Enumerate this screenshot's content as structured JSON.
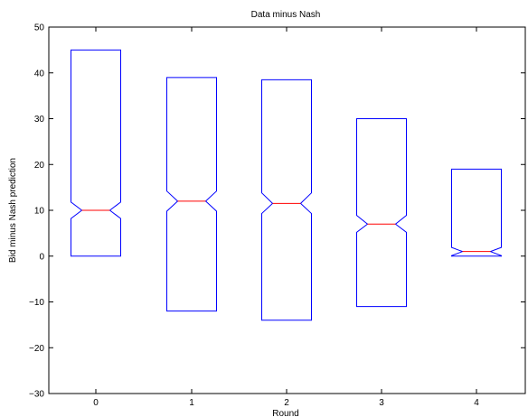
{
  "chart_data": {
    "type": "boxplot",
    "title": "Data minus Nash",
    "xlabel": "Round",
    "ylabel": "Bid minus Nash prediction",
    "ylim": [
      -30,
      50
    ],
    "yticks": [
      -30,
      -20,
      -10,
      0,
      10,
      20,
      30,
      40,
      50
    ],
    "ytick_labels": [
      "−30",
      "−20",
      "−10",
      "0",
      "10",
      "20",
      "30",
      "40",
      "50"
    ],
    "categories": [
      "0",
      "1",
      "2",
      "3",
      "4"
    ],
    "boxes": [
      {
        "category": "0",
        "q1": 0,
        "median": 10,
        "q3": 45,
        "notch_low": 8.2,
        "notch_high": 11.8
      },
      {
        "category": "1",
        "q1": -12,
        "median": 12,
        "q3": 39,
        "notch_low": 9.8,
        "notch_high": 14.2
      },
      {
        "category": "2",
        "q1": -14,
        "median": 11.5,
        "q3": 38.5,
        "notch_low": 9.3,
        "notch_high": 13.8
      },
      {
        "category": "3",
        "q1": -11,
        "median": 7,
        "q3": 30,
        "notch_low": 5.2,
        "notch_high": 8.9
      },
      {
        "category": "4",
        "q1": 0,
        "median": 1,
        "q3": 19,
        "notch_low": 0.1,
        "notch_high": 1.9
      }
    ],
    "box_color": "#0000ff",
    "median_color": "#ff0000",
    "grid": false
  }
}
